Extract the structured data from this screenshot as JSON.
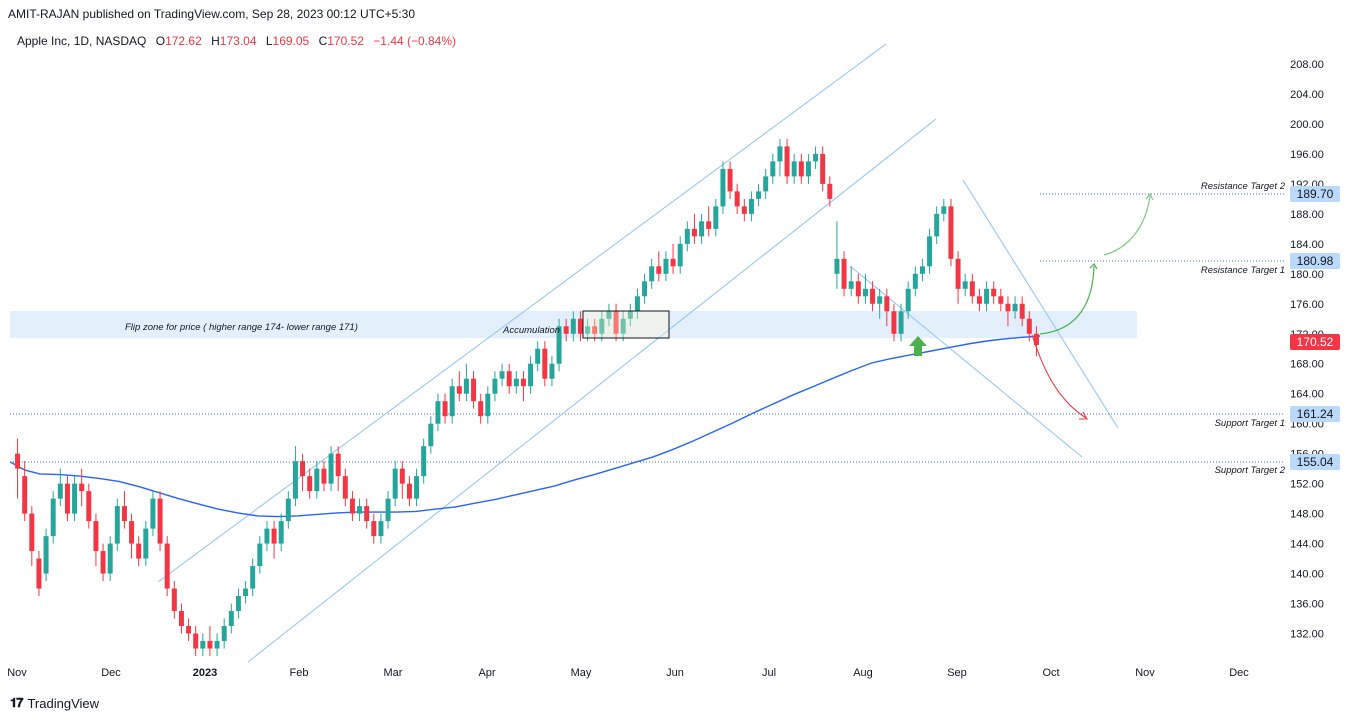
{
  "publisher": "AMIT-RAJAN published on TradingView.com, Sep 28, 2023 00:12 UTC+5:30",
  "legend": {
    "symbol": "Apple Inc, 1D, NASDAQ",
    "open_label": "O",
    "open": "172.62",
    "high_label": "H",
    "high": "173.04",
    "low_label": "L",
    "low": "169.05",
    "close_label": "C",
    "close": "170.52",
    "change": "−1.44 (−0.84%)"
  },
  "brand": "TradingView",
  "colors": {
    "up": "#26a69a",
    "down": "#f23645",
    "ma": "#2962ff",
    "channel": "#90c2f2",
    "zone": "#e3f0fc",
    "arrow_green": "#4caf50",
    "label_bg": "#bbd9fb",
    "price_tag": "#f23645"
  },
  "chart_data": {
    "type": "candlestick",
    "symbol": "Apple Inc",
    "interval": "1D",
    "exchange": "NASDAQ",
    "ylim": [
      129,
      212
    ],
    "price_axis": [
      "208.00",
      "204.00",
      "200.00",
      "196.00",
      "192.00",
      "188.00",
      "184.00",
      "180.00",
      "176.00",
      "172.00",
      "168.00",
      "164.00",
      "160.00",
      "156.00",
      "152.00",
      "148.00",
      "144.00",
      "140.00",
      "136.00",
      "132.00"
    ],
    "time_axis": [
      "Nov",
      "Dec",
      "2023",
      "Feb",
      "Mar",
      "Apr",
      "May",
      "Jun",
      "Jul",
      "Aug",
      "Sep",
      "Oct",
      "Nov",
      "Dec"
    ],
    "last_price": "170.52",
    "key_levels": [
      {
        "label": "Resistance Target 2",
        "price": "189.70",
        "value": 189.7
      },
      {
        "label": "Resistance Target 1",
        "price": "180.98",
        "value": 180.98
      },
      {
        "label": "Support Target 1",
        "price": "161.24",
        "value": 161.24
      },
      {
        "label": "Support Target 2",
        "price": "155.04",
        "value": 155.04
      }
    ],
    "zone": {
      "text": "Flip zone for price ( higher range 174- lower range 171)",
      "high": 174.5,
      "low": 171
    },
    "annotations": [
      {
        "text": "Accumulation"
      }
    ],
    "ma_200": [
      [
        0,
        154.9
      ],
      [
        15,
        153.8
      ],
      [
        30,
        153.3
      ],
      [
        50,
        153.2
      ],
      [
        70,
        153.0
      ],
      [
        90,
        152.7
      ],
      [
        110,
        152.3
      ],
      [
        130,
        151.6
      ],
      [
        150,
        150.8
      ],
      [
        170,
        150.0
      ],
      [
        190,
        149.3
      ],
      [
        210,
        148.6
      ],
      [
        230,
        148.1
      ],
      [
        250,
        147.7
      ],
      [
        270,
        147.6
      ],
      [
        290,
        147.7
      ],
      [
        310,
        147.9
      ],
      [
        330,
        148.1
      ],
      [
        350,
        148.2
      ],
      [
        370,
        148.2
      ],
      [
        390,
        148.2
      ],
      [
        410,
        148.3
      ],
      [
        430,
        148.6
      ],
      [
        450,
        148.9
      ],
      [
        470,
        149.4
      ],
      [
        490,
        149.9
      ],
      [
        510,
        150.5
      ],
      [
        530,
        151.1
      ],
      [
        550,
        151.7
      ],
      [
        570,
        152.5
      ],
      [
        590,
        153.2
      ],
      [
        610,
        154.0
      ],
      [
        630,
        154.8
      ],
      [
        650,
        155.6
      ],
      [
        670,
        156.6
      ],
      [
        690,
        157.7
      ],
      [
        710,
        158.9
      ],
      [
        730,
        160.1
      ],
      [
        750,
        161.4
      ],
      [
        770,
        162.6
      ],
      [
        790,
        163.8
      ],
      [
        810,
        164.9
      ],
      [
        830,
        166.0
      ],
      [
        850,
        167.1
      ],
      [
        870,
        168.1
      ],
      [
        890,
        168.7
      ],
      [
        910,
        169.2
      ],
      [
        930,
        169.7
      ],
      [
        950,
        170.2
      ],
      [
        970,
        170.7
      ],
      [
        990,
        171.1
      ],
      [
        1010,
        171.4
      ],
      [
        1040,
        171.7
      ]
    ],
    "candles": [
      [
        156,
        154,
        158,
        150
      ],
      [
        153,
        148,
        155,
        147
      ],
      [
        148,
        143,
        149,
        141
      ],
      [
        142,
        138,
        143,
        137
      ],
      [
        140,
        145,
        146,
        139
      ],
      [
        145,
        150,
        151,
        144
      ],
      [
        150,
        152,
        154,
        149
      ],
      [
        152,
        148,
        153,
        147
      ],
      [
        148,
        152,
        153,
        147
      ],
      [
        152,
        151,
        154,
        149
      ],
      [
        151,
        147,
        152,
        146
      ],
      [
        147,
        143,
        148,
        141
      ],
      [
        143,
        140,
        144,
        139
      ],
      [
        140,
        144,
        145,
        139
      ],
      [
        144,
        149,
        150,
        143
      ],
      [
        149,
        147,
        151,
        146
      ],
      [
        147,
        144,
        148,
        142
      ],
      [
        144,
        142,
        145,
        141
      ],
      [
        142,
        146,
        147,
        141
      ],
      [
        146,
        150,
        151,
        145
      ],
      [
        150,
        144,
        151,
        143
      ],
      [
        144,
        138,
        145,
        137
      ],
      [
        138,
        135,
        139,
        134
      ],
      [
        135,
        133,
        136,
        132
      ],
      [
        133,
        132,
        134,
        131
      ],
      [
        132,
        130,
        133,
        129
      ],
      [
        130,
        131,
        132,
        129
      ],
      [
        131,
        130,
        133,
        129
      ],
      [
        130,
        131,
        132,
        129
      ],
      [
        131,
        133,
        134,
        130
      ],
      [
        133,
        135,
        136,
        132
      ],
      [
        135,
        137,
        138,
        134
      ],
      [
        137,
        138,
        139,
        136
      ],
      [
        138,
        141,
        142,
        137
      ],
      [
        141,
        144,
        145,
        140
      ],
      [
        144,
        146,
        147,
        143
      ],
      [
        146,
        144,
        147,
        142
      ],
      [
        144,
        147,
        148,
        143
      ],
      [
        147,
        150,
        151,
        146
      ],
      [
        150,
        155,
        157,
        149
      ],
      [
        155,
        153,
        156,
        151
      ],
      [
        153,
        151,
        154,
        150
      ],
      [
        151,
        154,
        155,
        150
      ],
      [
        154,
        152,
        155,
        151
      ],
      [
        152,
        156,
        157,
        151
      ],
      [
        156,
        153,
        157,
        151
      ],
      [
        153,
        150,
        154,
        149
      ],
      [
        150,
        148,
        151,
        147
      ],
      [
        148,
        149,
        150,
        147
      ],
      [
        149,
        147,
        150,
        146
      ],
      [
        147,
        145,
        148,
        144
      ],
      [
        145,
        147,
        148,
        144
      ],
      [
        147,
        150,
        151,
        146
      ],
      [
        150,
        154,
        155,
        149
      ],
      [
        154,
        152,
        155,
        150
      ],
      [
        152,
        150,
        153,
        149
      ],
      [
        150,
        153,
        154,
        149
      ],
      [
        153,
        157,
        158,
        152
      ],
      [
        157,
        160,
        161,
        156
      ],
      [
        160,
        163,
        164,
        159
      ],
      [
        163,
        161,
        164,
        160
      ],
      [
        161,
        165,
        166,
        160
      ],
      [
        165,
        164,
        167,
        163
      ],
      [
        164,
        166,
        168,
        163
      ],
      [
        166,
        163,
        167,
        162
      ],
      [
        163,
        161,
        164,
        160
      ],
      [
        161,
        164,
        165,
        160
      ],
      [
        164,
        166,
        167,
        163
      ],
      [
        166,
        167,
        168,
        165
      ],
      [
        167,
        165,
        168,
        164
      ],
      [
        165,
        166,
        167,
        164
      ],
      [
        166,
        165,
        167,
        163
      ],
      [
        165,
        168,
        169,
        164
      ],
      [
        168,
        170,
        171,
        167
      ],
      [
        170,
        166,
        171,
        165
      ],
      [
        166,
        168,
        169,
        165
      ],
      [
        168,
        173,
        174,
        167
      ],
      [
        173,
        172,
        174,
        171
      ],
      [
        172,
        174,
        175,
        171
      ],
      [
        174,
        172,
        175,
        171
      ],
      [
        172,
        173,
        174,
        171
      ],
      [
        173,
        172,
        174,
        171
      ],
      [
        172,
        174,
        175,
        171
      ],
      [
        174,
        175,
        176,
        173
      ],
      [
        175,
        172,
        176,
        171
      ],
      [
        172,
        174,
        175,
        171
      ],
      [
        174,
        175,
        176,
        173
      ],
      [
        175,
        177,
        178,
        174
      ],
      [
        177,
        179,
        180,
        176
      ],
      [
        179,
        181,
        182,
        178
      ],
      [
        181,
        180,
        183,
        179
      ],
      [
        180,
        182,
        183,
        179
      ],
      [
        182,
        181,
        184,
        180
      ],
      [
        181,
        184,
        185,
        180
      ],
      [
        184,
        186,
        187,
        183
      ],
      [
        186,
        185,
        188,
        184
      ],
      [
        185,
        187,
        188,
        184
      ],
      [
        187,
        186,
        189,
        185
      ],
      [
        186,
        189,
        190,
        185
      ],
      [
        189,
        194,
        195,
        188
      ],
      [
        194,
        191,
        195,
        190
      ],
      [
        191,
        189,
        192,
        188
      ],
      [
        189,
        188,
        190,
        187
      ],
      [
        188,
        190,
        191,
        187
      ],
      [
        190,
        191,
        192,
        189
      ],
      [
        191,
        193,
        194,
        190
      ],
      [
        193,
        195,
        196,
        192
      ],
      [
        195,
        197,
        198,
        193
      ],
      [
        197,
        193,
        198,
        192
      ],
      [
        193,
        195,
        196,
        192
      ],
      [
        195,
        193,
        196,
        192
      ],
      [
        193,
        195,
        196,
        192
      ],
      [
        195,
        196,
        197,
        194
      ],
      [
        196,
        192,
        197,
        191
      ],
      [
        192,
        190,
        193,
        189
      ],
      [
        180,
        182,
        187,
        178
      ],
      [
        182,
        178,
        183,
        177
      ],
      [
        178,
        179,
        181,
        177
      ],
      [
        179,
        177,
        180,
        176
      ],
      [
        177,
        178,
        180,
        176
      ],
      [
        178,
        176,
        179,
        175
      ],
      [
        176,
        177,
        178,
        174
      ],
      [
        177,
        175,
        178,
        173
      ],
      [
        175,
        172,
        176,
        171
      ],
      [
        172,
        175,
        176,
        171
      ],
      [
        175,
        178,
        179,
        174
      ],
      [
        178,
        180,
        181,
        177
      ],
      [
        180,
        181,
        182,
        179
      ],
      [
        181,
        185,
        186,
        180
      ],
      [
        185,
        188,
        189,
        184
      ],
      [
        188,
        189,
        190,
        187
      ],
      [
        189,
        182,
        190,
        181
      ],
      [
        182,
        178,
        183,
        176
      ],
      [
        178,
        179,
        180,
        177
      ],
      [
        179,
        177,
        180,
        176
      ],
      [
        177,
        176,
        178,
        175
      ],
      [
        176,
        178,
        179,
        175
      ],
      [
        178,
        177,
        179,
        176
      ],
      [
        177,
        176,
        178,
        175
      ],
      [
        176,
        175,
        177,
        173
      ],
      [
        175,
        176,
        177,
        174
      ],
      [
        176,
        174,
        177,
        173
      ],
      [
        174,
        172,
        175,
        171
      ],
      [
        172,
        170.5,
        173,
        169
      ]
    ]
  }
}
